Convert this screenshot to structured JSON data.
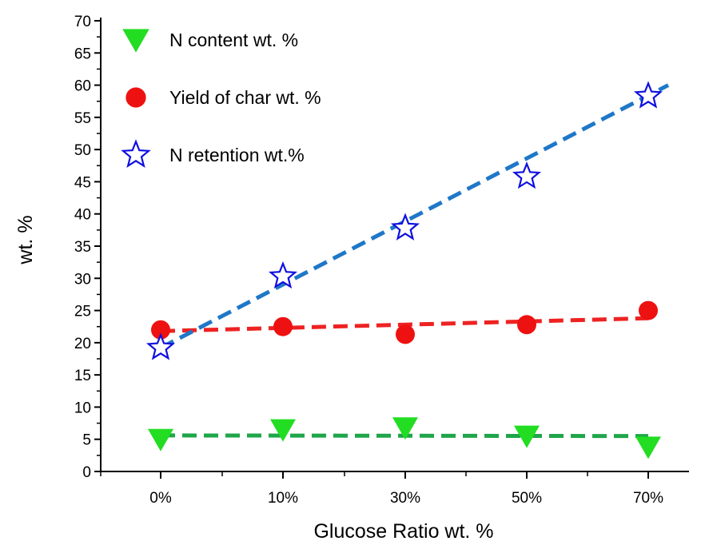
{
  "chart_data": {
    "type": "scatter",
    "title": "",
    "xlabel": "Glucose Ratio wt. %",
    "ylabel": "wt. %",
    "categories": [
      "0%",
      "10%",
      "30%",
      "50%",
      "70%"
    ],
    "ylim": [
      0,
      70
    ],
    "yticks": [
      0,
      5,
      10,
      15,
      20,
      25,
      30,
      35,
      40,
      45,
      50,
      55,
      60,
      65,
      70
    ],
    "grid": false,
    "legend_position": "top-left",
    "series": [
      {
        "name": "N content wt. %",
        "marker": "triangle-down",
        "color": "#22dd22",
        "values": [
          5.0,
          6.5,
          6.8,
          5.5,
          3.8
        ],
        "fit_line": {
          "color": "#1fa64a",
          "values": [
            5.6,
            5.5
          ]
        }
      },
      {
        "name": "Yield of char wt. %",
        "marker": "circle",
        "color": "#ee1111",
        "values": [
          22.0,
          22.5,
          21.3,
          22.8,
          25.0
        ],
        "fit_line": {
          "color": "#ee2222",
          "values": [
            21.8,
            23.8
          ]
        }
      },
      {
        "name": "N retention wt.%",
        "marker": "star-open",
        "color": "#1010e0",
        "values": [
          19.2,
          30.3,
          37.8,
          45.8,
          58.3
        ],
        "fit_line": {
          "color": "#1f77c8",
          "values": [
            19.2,
            60.0
          ]
        }
      }
    ]
  }
}
